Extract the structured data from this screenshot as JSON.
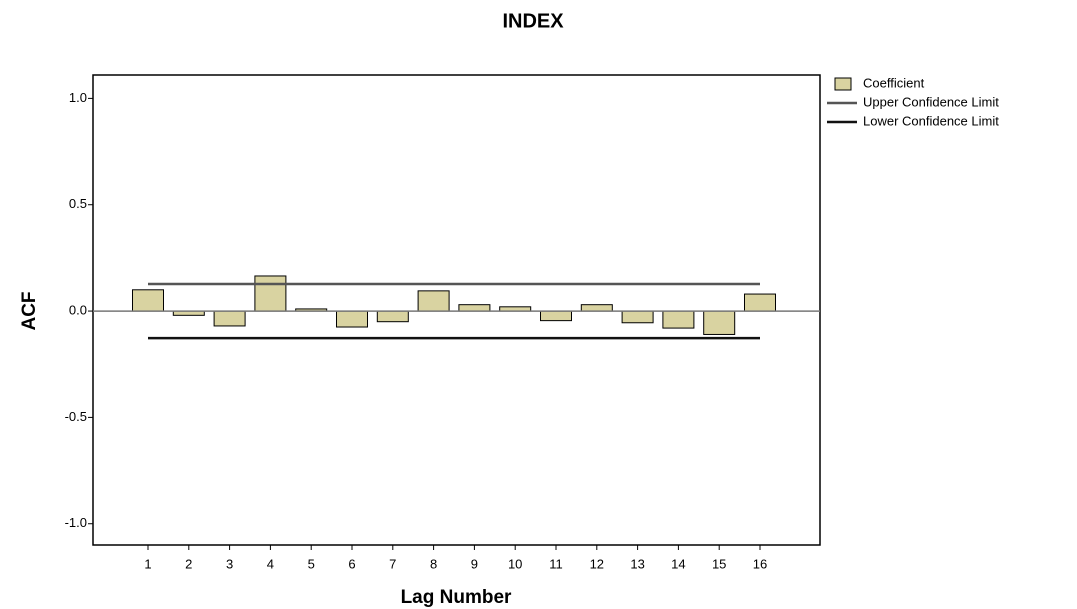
{
  "chart_data": {
    "type": "bar",
    "title": "INDEX",
    "x_label": "Lag Number",
    "y_label": "ACF",
    "categories": [
      "1",
      "2",
      "3",
      "4",
      "5",
      "6",
      "7",
      "8",
      "9",
      "10",
      "11",
      "12",
      "13",
      "14",
      "15",
      "16"
    ],
    "series": [
      {
        "name": "Coefficient",
        "type": "bar",
        "color": "#d9d3a1",
        "values": [
          0.1,
          -0.02,
          -0.07,
          0.165,
          0.01,
          -0.075,
          -0.05,
          0.095,
          0.03,
          0.02,
          -0.045,
          0.03,
          -0.055,
          -0.08,
          -0.11,
          0.08
        ]
      },
      {
        "name": "Upper Confidence Limit",
        "type": "line",
        "color": "#555555",
        "values": [
          0.127,
          0.127,
          0.127,
          0.127,
          0.127,
          0.127,
          0.127,
          0.127,
          0.127,
          0.127,
          0.127,
          0.127,
          0.127,
          0.127,
          0.127,
          0.127
        ]
      },
      {
        "name": "Lower Confidence Limit",
        "type": "line",
        "color": "#111111",
        "values": [
          -0.127,
          -0.127,
          -0.127,
          -0.127,
          -0.127,
          -0.127,
          -0.127,
          -0.127,
          -0.127,
          -0.127,
          -0.127,
          -0.127,
          -0.127,
          -0.127,
          -0.127,
          -0.127
        ]
      }
    ],
    "ylim": [
      -1.1,
      1.11
    ],
    "yticks": [
      {
        "value": -1,
        "label": "-1.0"
      },
      -0.5,
      {
        "value": 0,
        "label": "0.0"
      },
      0.5,
      {
        "value": 1,
        "label": "1.0"
      }
    ],
    "grid": false,
    "legend": "top-right"
  }
}
